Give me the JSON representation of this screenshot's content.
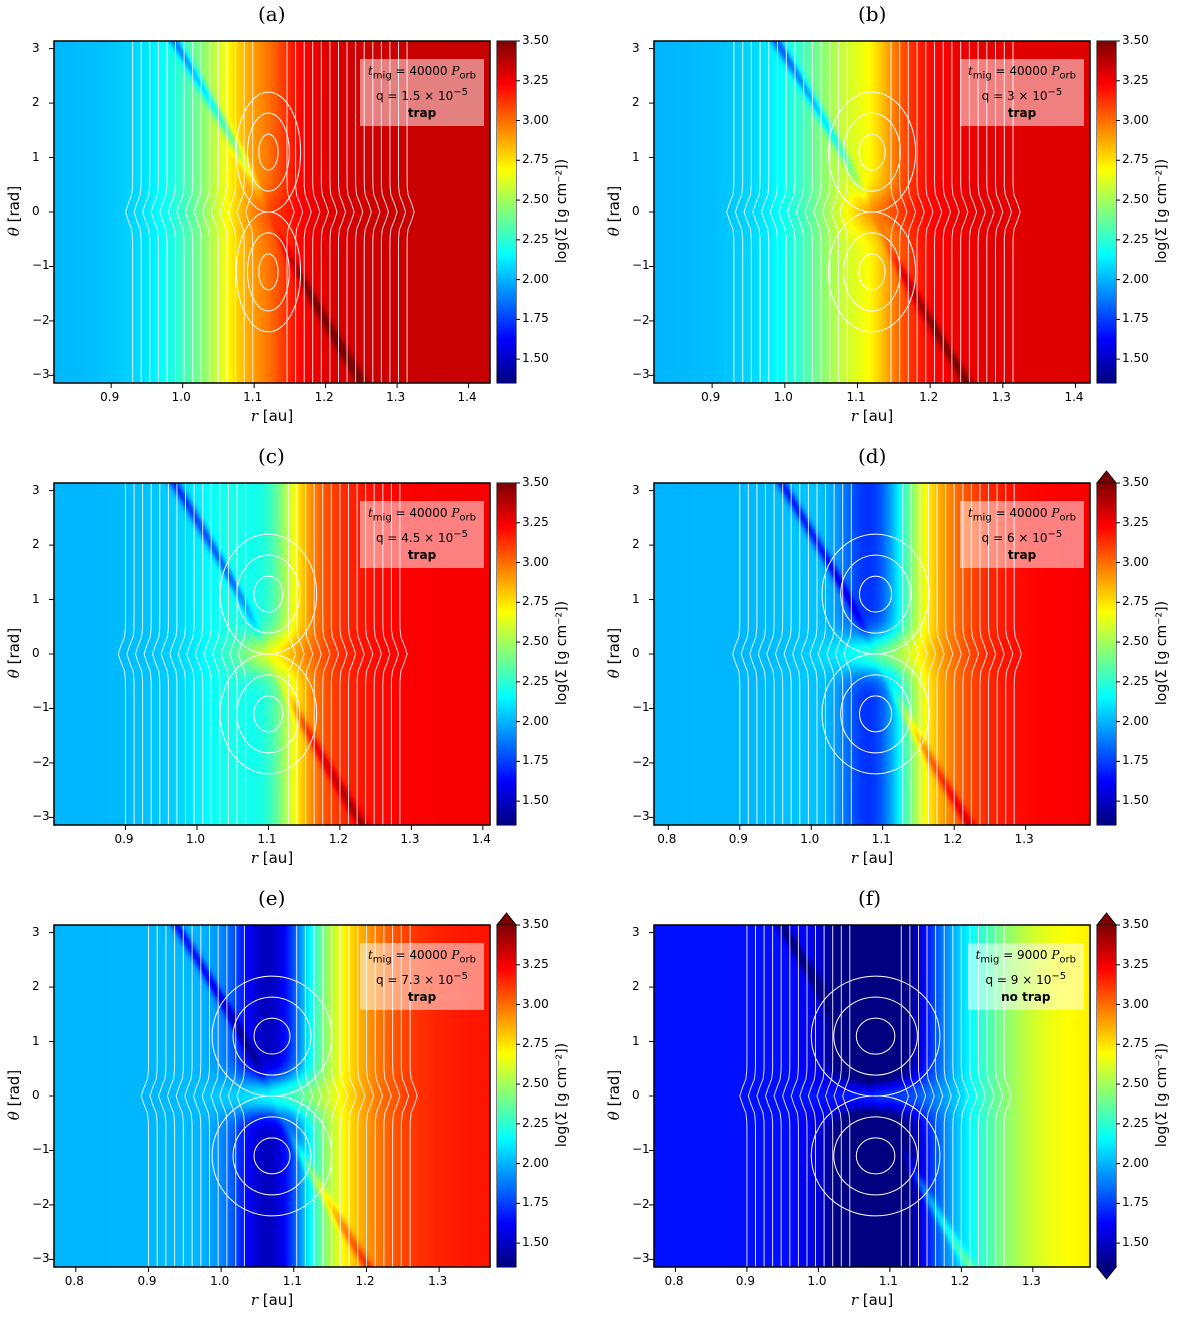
{
  "chart_data": [
    {
      "type": "heatmap",
      "panel_label": "(a)",
      "xlabel_var": "r",
      "xlabel_unit": "[au]",
      "ylabel_var": "θ",
      "ylabel_unit": "[rad]",
      "cbar_label": "log(Σ [g cm⁻²])",
      "cbar_ticks": [
        "3.50",
        "3.25",
        "3.00",
        "2.75",
        "2.50",
        "2.25",
        "2.00",
        "1.75",
        "1.50"
      ],
      "clim": [
        1.35,
        3.5
      ],
      "xlim": [
        0.82,
        1.43
      ],
      "ylim": [
        -3.14,
        3.14
      ],
      "xticks": [
        "0.9",
        "1.0",
        "1.1",
        "1.2",
        "1.3",
        "1.4"
      ],
      "yticks": [
        "3",
        "2",
        "1",
        "0",
        "−1",
        "−2",
        "−3"
      ],
      "annotation": {
        "t_label": "t",
        "t_sub": "mig",
        "t_value": " = 40000 ",
        "p_label": "P",
        "p_sub": "orb",
        "q_text": "q = 1.5 × 10",
        "q_exp": "−5",
        "status": "trap"
      },
      "planet_r": 1.12,
      "gap_depth": 0.1,
      "horseshoe_halfwidth": 0.03,
      "background_inner": 2.0,
      "background_outer": 3.35,
      "transition_center": 1.06
    },
    {
      "type": "heatmap",
      "panel_label": "(b)",
      "xlabel_var": "r",
      "xlabel_unit": "[au]",
      "ylabel_var": "θ",
      "ylabel_unit": "[rad]",
      "cbar_label": "log(Σ [g cm⁻²])",
      "cbar_ticks": [
        "3.50",
        "3.25",
        "3.00",
        "2.75",
        "2.50",
        "2.25",
        "2.00",
        "1.75",
        "1.50"
      ],
      "clim": [
        1.35,
        3.5
      ],
      "xlim": [
        0.82,
        1.42
      ],
      "ylim": [
        -3.14,
        3.14
      ],
      "xticks": [
        "0.9",
        "1.0",
        "1.1",
        "1.2",
        "1.3",
        "1.4"
      ],
      "yticks": [
        "3",
        "2",
        "1",
        "0",
        "−1",
        "−2",
        "−3"
      ],
      "annotation": {
        "t_label": "t",
        "t_sub": "mig",
        "t_value": " = 40000 ",
        "p_label": "P",
        "p_sub": "orb",
        "q_text": "q = 3 × 10",
        "q_exp": "−5",
        "status": "trap"
      },
      "planet_r": 1.12,
      "gap_depth": 0.25,
      "horseshoe_halfwidth": 0.04,
      "background_inner": 2.0,
      "background_outer": 3.3,
      "transition_center": 1.08
    },
    {
      "type": "heatmap",
      "panel_label": "(c)",
      "xlabel_var": "r",
      "xlabel_unit": "[au]",
      "ylabel_var": "θ",
      "ylabel_unit": "[rad]",
      "cbar_label": "log(Σ [g cm⁻²])",
      "cbar_ticks": [
        "3.50",
        "3.25",
        "3.00",
        "2.75",
        "2.50",
        "2.25",
        "2.00",
        "1.75",
        "1.50"
      ],
      "clim": [
        1.35,
        3.5
      ],
      "xlim": [
        0.8,
        1.41
      ],
      "ylim": [
        -3.14,
        3.14
      ],
      "xticks": [
        "0.9",
        "1.0",
        "1.1",
        "1.2",
        "1.3",
        "1.4"
      ],
      "yticks": [
        "3",
        "2",
        "1",
        "0",
        "−1",
        "−2",
        "−3"
      ],
      "annotation": {
        "t_label": "t",
        "t_sub": "mig",
        "t_value": " = 40000 ",
        "p_label": "P",
        "p_sub": "orb",
        "q_text": "q = 4.5 × 10",
        "q_exp": "−5",
        "status": "trap"
      },
      "planet_r": 1.1,
      "gap_depth": 0.45,
      "horseshoe_halfwidth": 0.045,
      "background_inner": 2.0,
      "background_outer": 3.25,
      "transition_center": 1.1
    },
    {
      "type": "heatmap",
      "panel_label": "(d)",
      "xlabel_var": "r",
      "xlabel_unit": "[au]",
      "ylabel_var": "θ",
      "ylabel_unit": "[rad]",
      "cbar_label": "log(Σ [g cm⁻²])",
      "cbar_ticks": [
        "3.50",
        "3.25",
        "3.00",
        "2.75",
        "2.50",
        "2.25",
        "2.00",
        "1.75",
        "1.50"
      ],
      "clim": [
        1.35,
        3.5
      ],
      "xlim": [
        0.78,
        1.39
      ],
      "ylim": [
        -3.14,
        3.14
      ],
      "xticks": [
        "0.8",
        "0.9",
        "1.0",
        "1.1",
        "1.2",
        "1.3"
      ],
      "yticks": [
        "3",
        "2",
        "1",
        "0",
        "−1",
        "−2",
        "−3"
      ],
      "annotation": {
        "t_label": "t",
        "t_sub": "mig",
        "t_value": " = 40000 ",
        "p_label": "P",
        "p_sub": "orb",
        "q_text": "q = 6 × 10",
        "q_exp": "−5",
        "status": "trap"
      },
      "planet_r": 1.09,
      "gap_depth": 0.7,
      "horseshoe_halfwidth": 0.05,
      "background_inner": 2.0,
      "background_outer": 3.25,
      "transition_center": 1.14,
      "cbar_extend": "max"
    },
    {
      "type": "heatmap",
      "panel_label": "(e)",
      "xlabel_var": "r",
      "xlabel_unit": "[au]",
      "ylabel_var": "θ",
      "ylabel_unit": "[rad]",
      "cbar_label": "log(Σ [g cm⁻²])",
      "cbar_ticks": [
        "3.50",
        "3.25",
        "3.00",
        "2.75",
        "2.50",
        "2.25",
        "2.00",
        "1.75",
        "1.50"
      ],
      "clim": [
        1.35,
        3.5
      ],
      "xlim": [
        0.77,
        1.37
      ],
      "ylim": [
        -3.14,
        3.14
      ],
      "xticks": [
        "0.8",
        "0.9",
        "1.0",
        "1.1",
        "1.2",
        "1.3"
      ],
      "yticks": [
        "3",
        "2",
        "1",
        "0",
        "−1",
        "−2",
        "−3"
      ],
      "annotation": {
        "t_label": "t",
        "t_sub": "mig",
        "t_value": " = 40000 ",
        "p_label": "P",
        "p_sub": "orb",
        "q_text": "q = 7.3 × 10",
        "q_exp": "−5",
        "status": "trap"
      },
      "planet_r": 1.07,
      "gap_depth": 0.85,
      "horseshoe_halfwidth": 0.055,
      "background_inner": 2.0,
      "background_outer": 3.2,
      "transition_center": 1.15,
      "cbar_extend": "max"
    },
    {
      "type": "heatmap",
      "panel_label": "(f)",
      "xlabel_var": "r",
      "xlabel_unit": "[au]",
      "ylabel_var": "θ",
      "ylabel_unit": "[rad]",
      "cbar_label": "log(Σ [g cm⁻²])",
      "cbar_ticks": [
        "3.50",
        "3.25",
        "3.00",
        "2.75",
        "2.50",
        "2.25",
        "2.00",
        "1.75",
        "1.50"
      ],
      "clim": [
        1.35,
        3.5
      ],
      "xlim": [
        0.77,
        1.38
      ],
      "ylim": [
        -3.14,
        3.14
      ],
      "xticks": [
        "0.8",
        "0.9",
        "1.0",
        "1.1",
        "1.2",
        "1.3"
      ],
      "yticks": [
        "3",
        "2",
        "1",
        "0",
        "−1",
        "−2",
        "−3"
      ],
      "annotation": {
        "t_label": "t",
        "t_sub": "mig",
        "t_value": " = 9000 ",
        "p_label": "P",
        "p_sub": "orb",
        "q_text": "q = 9 × 10",
        "q_exp": "−5",
        "status": "no trap"
      },
      "planet_r": 1.08,
      "gap_depth": 1.0,
      "horseshoe_halfwidth": 0.06,
      "background_inner": 1.65,
      "background_outer": 2.75,
      "transition_center": 1.22,
      "cbar_extend": "both"
    }
  ]
}
